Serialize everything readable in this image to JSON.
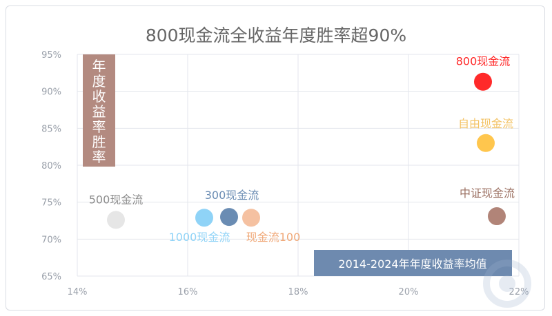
{
  "chart_data": {
    "type": "scatter",
    "title": "800现金流全收益年度胜率超90%",
    "xlabel": "",
    "ylabel": "",
    "xlim": [
      14,
      22
    ],
    "ylim": [
      65,
      95
    ],
    "x_ticks": [
      14,
      16,
      18,
      20,
      22
    ],
    "y_ticks": [
      65,
      70,
      75,
      80,
      85,
      90,
      95
    ],
    "tick_suffix": "%",
    "grid": true,
    "points": [
      {
        "name": "800现金流",
        "x": 21.35,
        "y": 91.3,
        "color": "#ff2a2a",
        "label_color": "#ff2a2a"
      },
      {
        "name": "自由现金流",
        "x": 21.4,
        "y": 83.0,
        "color": "#ffc64d",
        "label_color": "#f3c366"
      },
      {
        "name": "中证现金流",
        "x": 21.6,
        "y": 73.1,
        "color": "#b18478",
        "label_color": "#9c7163"
      },
      {
        "name": "500现金流",
        "x": 14.7,
        "y": 72.6,
        "color": "#e6e6e6",
        "label_color": "#8c8c8c"
      },
      {
        "name": "1000现金流",
        "x": 16.3,
        "y": 72.9,
        "color": "#8fd3f7",
        "label_color": "#8fd3f7"
      },
      {
        "name": "300现金流",
        "x": 16.75,
        "y": 73.0,
        "color": "#6a8cb3",
        "label_color": "#6a8cb3"
      },
      {
        "name": "现金流100",
        "x": 17.15,
        "y": 72.9,
        "color": "#f5c1a1",
        "label_color": "#f0a878"
      }
    ],
    "annotations": {
      "vertical_box_text": "年度收益率胜率",
      "horizontal_box_text": "2014-2024年年度收益率均值"
    }
  }
}
